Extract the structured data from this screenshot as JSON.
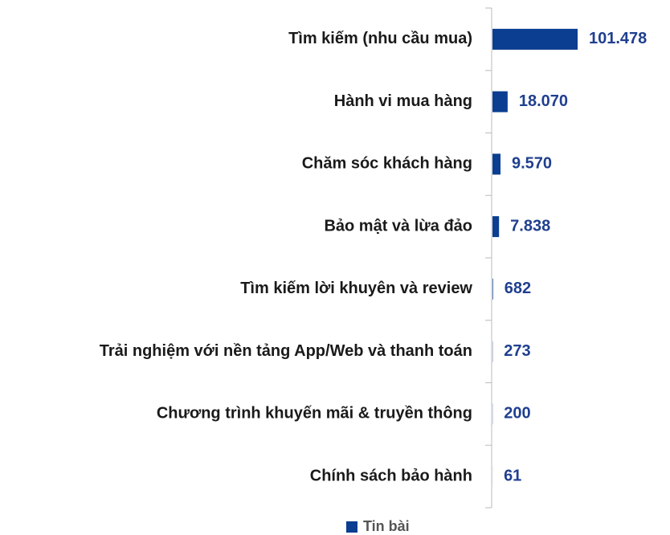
{
  "chart_data": {
    "type": "bar",
    "orientation": "horizontal",
    "categories": [
      "Tìm kiếm (nhu cầu mua)",
      "Hành vi mua hàng",
      "Chăm sóc khách hàng",
      "Bảo mật và lừa đảo",
      "Tìm kiếm lời khuyên và review",
      "Trải nghiệm với nền tảng App/Web và thanh toán",
      "Chương trình khuyến mãi & truyền thông",
      "Chính sách bảo hành"
    ],
    "series": [
      {
        "name": "Tin bài",
        "color": "#0b3d91",
        "values": [
          101478,
          18070,
          9570,
          7838,
          682,
          273,
          200,
          61
        ],
        "value_labels": [
          "101.478",
          "18.070",
          "9.570",
          "7.838",
          "682",
          "273",
          "200",
          "61"
        ]
      }
    ],
    "legend": "bottom"
  }
}
